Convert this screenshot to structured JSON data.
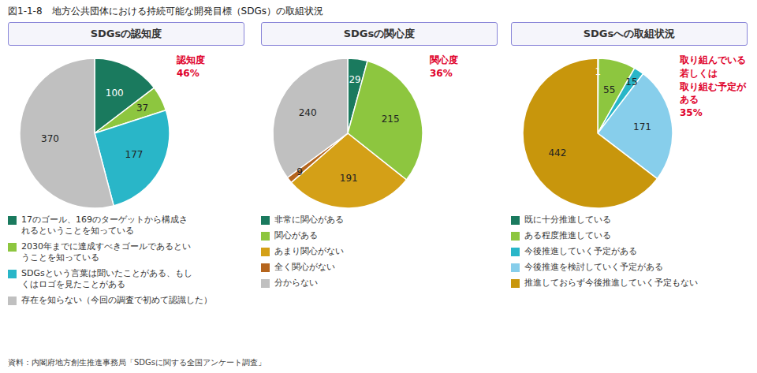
{
  "title": "図1-1-8　地方公共団体における持続可能な開発目標（SDGs）の取組状況",
  "annotations": [
    "資料：内閣府地方創生推進事務局「SDGsに関する全国アンケート調査」"
  ],
  "chart_data": [
    {
      "type": "pie",
      "title": "SDGsの認知度",
      "categories": [
        "17のゴール、169のターゲットから構成さ\nれるということを知っている",
        "2030年までに達成すべきゴールであるとい\nうことを知っている",
        "SDGsという言葉は聞いたことがある、もし\nくはロゴを見たことがある",
        "存在を知らない（今回の調査で初めて認識した）"
      ],
      "values": [
        100,
        37,
        177,
        370
      ],
      "colors": [
        "#1a7a5e",
        "#8dc63f",
        "#29b6c8",
        "#c0c0c0"
      ],
      "data_labels": true,
      "legend": "bottom",
      "annotations": [
        "認知度\n46%"
      ]
    },
    {
      "type": "pie",
      "title": "SDGsの関心度",
      "categories": [
        "非常に関心がある",
        "関心がある",
        "あまり関心がない",
        "全く関心がない",
        "分からない"
      ],
      "values": [
        29,
        215,
        191,
        9,
        240
      ],
      "colors": [
        "#1a7a5e",
        "#8dc63f",
        "#d4a017",
        "#b5651d",
        "#c0c0c0"
      ],
      "data_labels": true,
      "legend": "bottom",
      "annotations": [
        "関心度\n36%"
      ]
    },
    {
      "type": "pie",
      "title": "SDGsへの取組状況",
      "categories": [
        "既に十分推進している",
        "ある程度推進している",
        "今後推進していく予定がある",
        "今後推進を検討していく予定がある",
        "推進しておらず今後推進していく予定もない"
      ],
      "values": [
        1,
        55,
        15,
        171,
        442
      ],
      "colors": [
        "#1a7a5e",
        "#8dc63f",
        "#29b6c8",
        "#87ceeb",
        "#c8960c"
      ],
      "data_labels": true,
      "legend": "bottom",
      "annotations": [
        "取り組んでいる\n若しくは\n取り組む予定が\nある\n35%"
      ]
    }
  ]
}
